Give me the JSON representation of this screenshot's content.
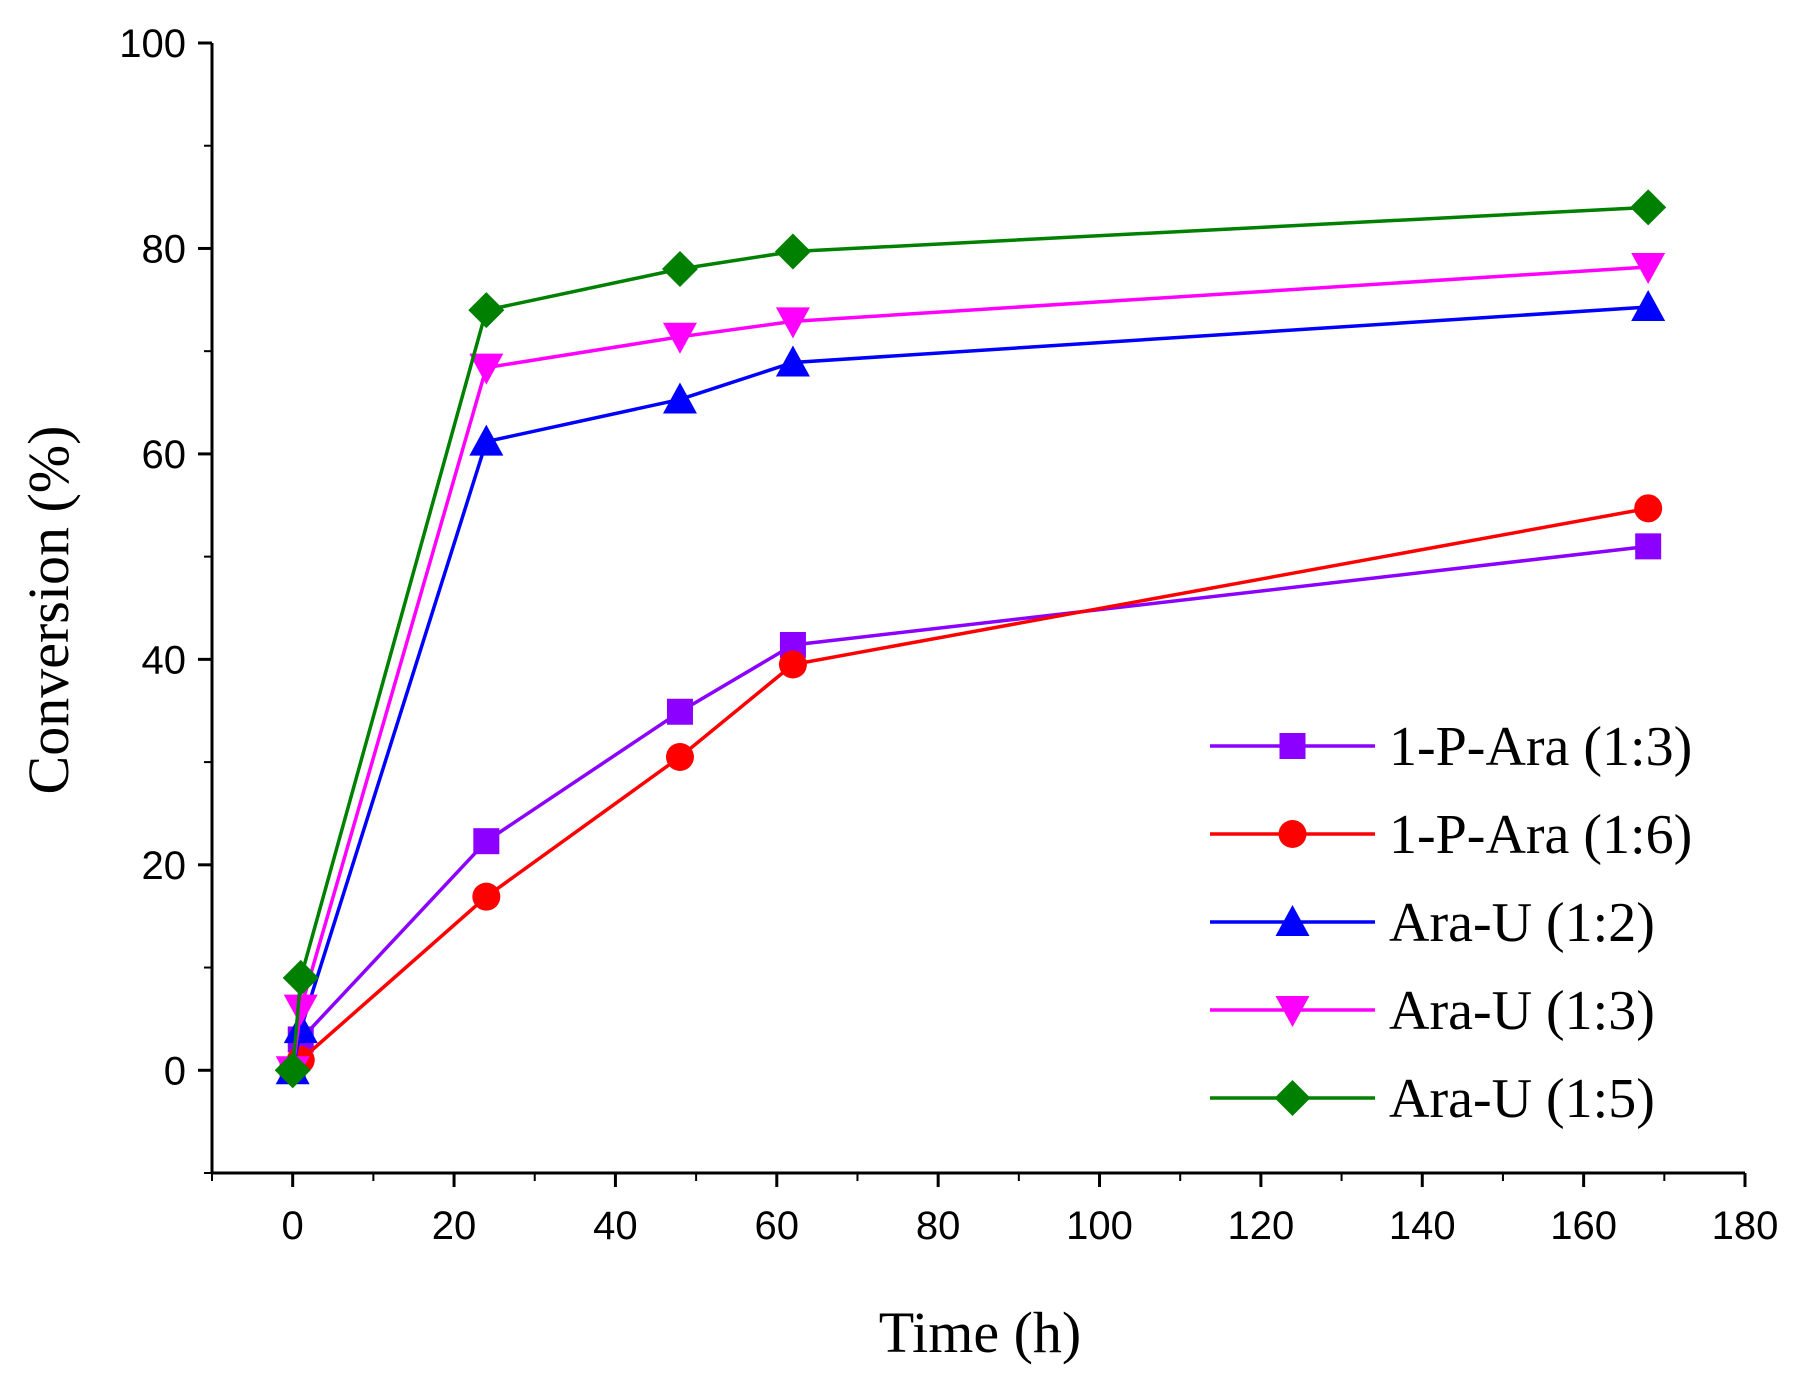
{
  "chart_data": {
    "type": "line",
    "title": "",
    "xlabel": "Time (h)",
    "ylabel": "Conversion (%)",
    "xlim": [
      -10,
      180
    ],
    "ylim": [
      -10,
      100
    ],
    "xticks": [
      0,
      20,
      40,
      60,
      80,
      100,
      120,
      140,
      160,
      180
    ],
    "yticks": [
      0,
      20,
      40,
      60,
      80,
      100
    ],
    "legend_position": "bottom-right",
    "grid": false,
    "series": [
      {
        "name": "1-P-Ara (1:3)",
        "color": "#8B00FF",
        "marker": "square",
        "x": [
          0,
          1,
          24,
          48,
          62,
          168
        ],
        "y": [
          0,
          3,
          22.3,
          34.9,
          41.4,
          51.0
        ]
      },
      {
        "name": "1-P-Ara (1:6)",
        "color": "#FF0000",
        "marker": "circle",
        "x": [
          0,
          1,
          24,
          48,
          62,
          168
        ],
        "y": [
          0,
          1,
          16.9,
          30.5,
          39.5,
          54.7
        ]
      },
      {
        "name": "Ara-U (1:2)",
        "color": "#0000FF",
        "marker": "triangle-up",
        "x": [
          0,
          1,
          24,
          48,
          62,
          168
        ],
        "y": [
          0,
          4,
          61.2,
          65.3,
          68.9,
          74.3
        ]
      },
      {
        "name": "Ara-U (1:3)",
        "color": "#FF00FF",
        "marker": "triangle-down",
        "x": [
          0,
          1,
          24,
          48,
          62,
          168
        ],
        "y": [
          0,
          6,
          68.4,
          71.4,
          72.9,
          78.2
        ]
      },
      {
        "name": "Ara-U (1:5)",
        "color": "#008000",
        "marker": "diamond",
        "x": [
          0,
          1,
          24,
          48,
          62,
          168
        ],
        "y": [
          0,
          9,
          74.0,
          78.0,
          79.7,
          84.0
        ]
      }
    ]
  }
}
